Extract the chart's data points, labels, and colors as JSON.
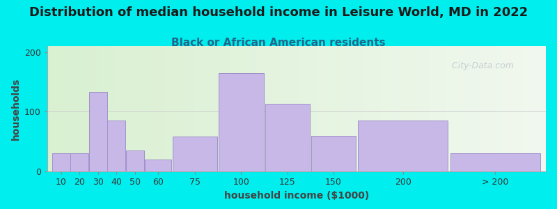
{
  "title": "Distribution of median household income in Leisure World, MD in 2022",
  "subtitle": "Black or African American residents",
  "xlabel": "household income ($1000)",
  "ylabel": "households",
  "bar_color": "#c8b8e8",
  "bar_edge_color": "#a090cc",
  "background_color": "#00eeee",
  "categories": [
    "10",
    "20",
    "30",
    "40",
    "50",
    "60",
    "75",
    "100",
    "125",
    "150",
    "200",
    "> 200"
  ],
  "values": [
    30,
    30,
    133,
    85,
    35,
    20,
    58,
    165,
    113,
    60,
    85,
    30
  ],
  "bar_lefts": [
    0,
    1,
    2,
    3,
    4,
    5,
    6,
    7,
    8,
    9,
    10,
    11
  ],
  "ylim": [
    0,
    210
  ],
  "yticks": [
    0,
    100,
    200
  ],
  "watermark": "  City-Data.com",
  "title_fontsize": 13,
  "subtitle_fontsize": 11,
  "axis_label_fontsize": 10,
  "tick_fontsize": 9,
  "title_color": "#1a1a1a",
  "subtitle_color": "#226688",
  "watermark_color": "#c0c8d0",
  "ylabel_color": "#444444",
  "xlabel_color": "#444444"
}
